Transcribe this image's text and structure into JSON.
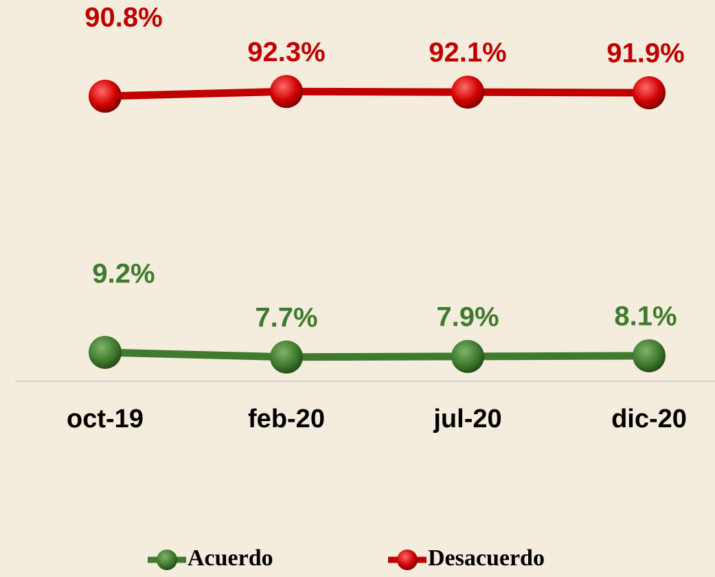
{
  "chart_data": {
    "type": "line",
    "categories": [
      "oct-19",
      "feb-20",
      "jul-20",
      "dic-20"
    ],
    "series": [
      {
        "name": "Acuerdo",
        "color": "#3f7a2e",
        "values": [
          9.2,
          7.7,
          7.9,
          8.1
        ],
        "value_labels": [
          "9.2%",
          "7.7%",
          "7.9%",
          "8.1%"
        ]
      },
      {
        "name": "Desacuerdo",
        "color": "#c00000",
        "values": [
          90.8,
          92.3,
          92.1,
          91.9
        ],
        "value_labels": [
          "90.8%",
          "92.3%",
          "92.1%",
          "91.9%"
        ]
      }
    ],
    "ylim": [
      0,
      100
    ],
    "legend": "bottom"
  }
}
